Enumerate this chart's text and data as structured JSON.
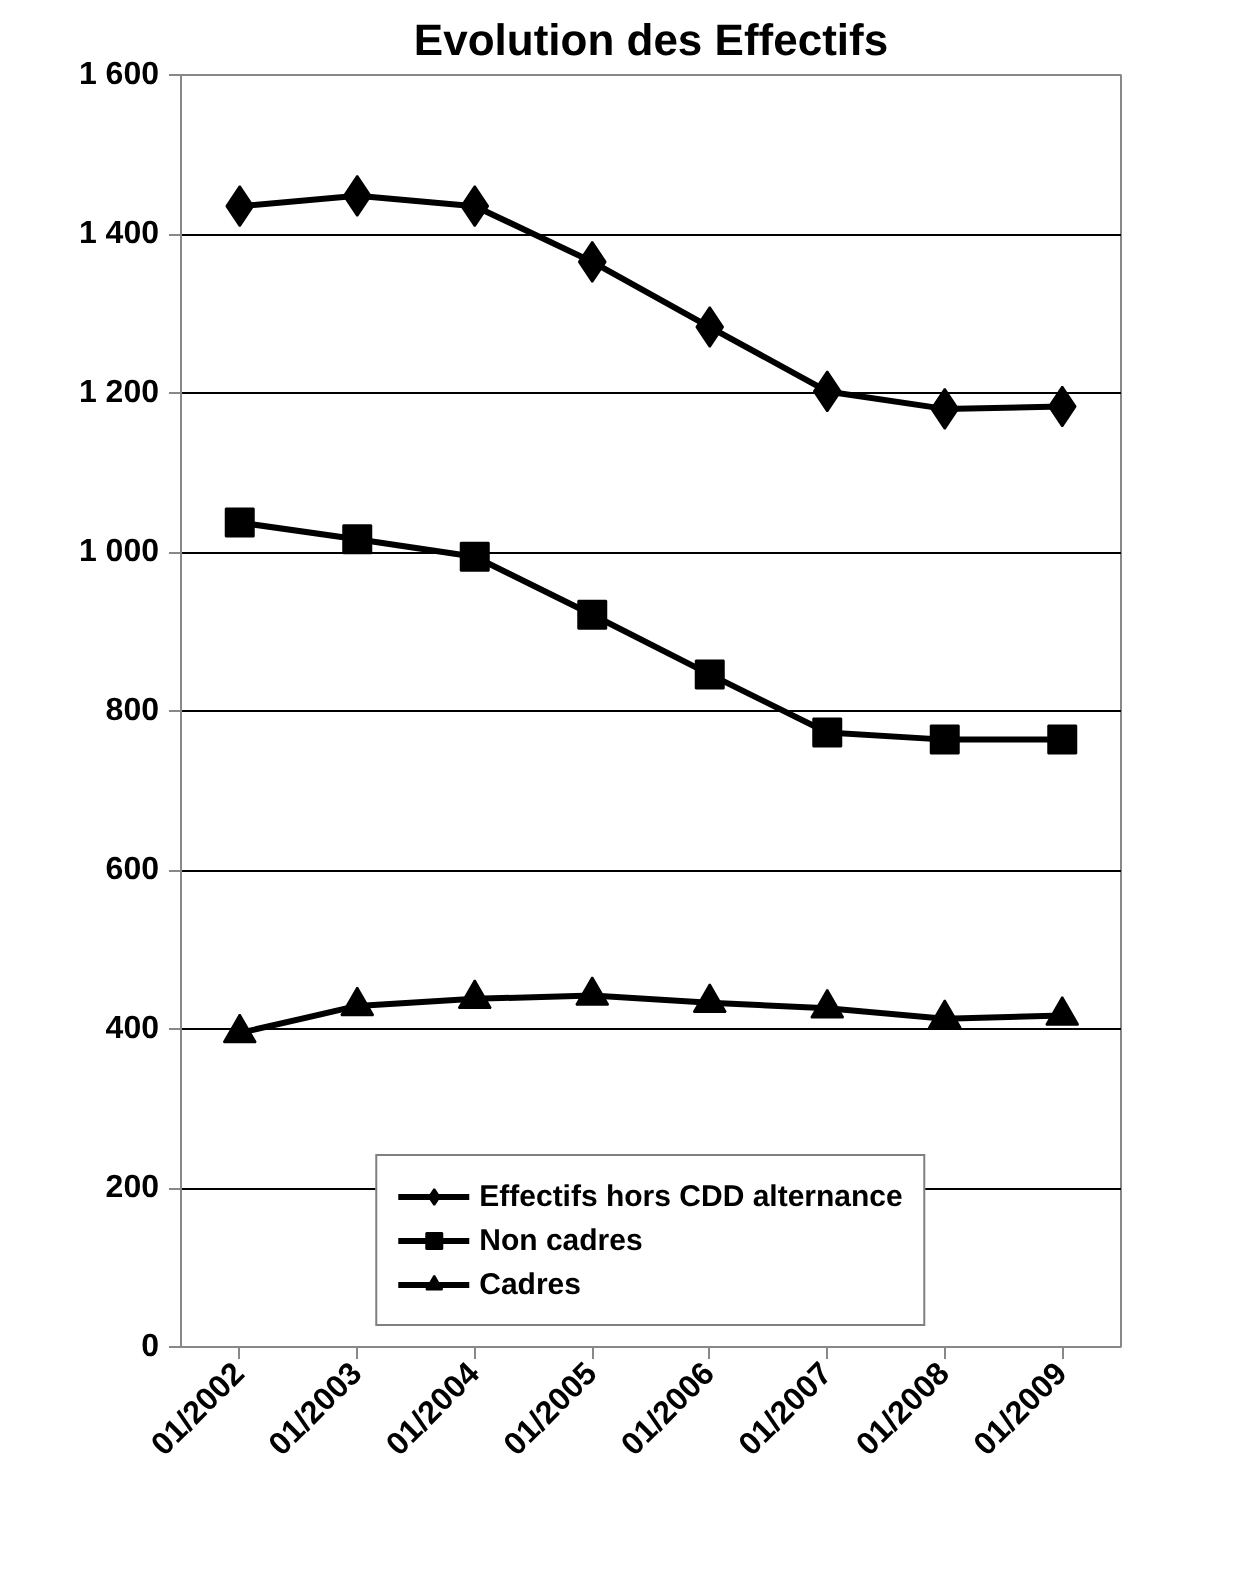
{
  "chart_data": {
    "type": "line",
    "title": "Evolution des Effectifs",
    "categories": [
      "01/2002",
      "01/2003",
      "01/2004",
      "01/2005",
      "01/2006",
      "01/2007",
      "01/2008",
      "01/2009"
    ],
    "series": [
      {
        "name": "Effectifs hors CDD alternance",
        "color": "#000000",
        "marker": "diamond",
        "values": [
          1435,
          1448,
          1435,
          1365,
          1283,
          1202,
          1180,
          1183
        ]
      },
      {
        "name": "Non cadres",
        "color": "#000000",
        "marker": "square",
        "values": [
          1037,
          1016,
          994,
          921,
          846,
          773,
          764,
          764
        ]
      },
      {
        "name": "Cadres",
        "color": "#000000",
        "marker": "triangle",
        "values": [
          395,
          429,
          438,
          442,
          433,
          426,
          413,
          417
        ]
      }
    ],
    "ylim": [
      0,
      1600
    ],
    "yticks": [
      {
        "value": 0,
        "label": "0"
      },
      {
        "value": 200,
        "label": "200"
      },
      {
        "value": 400,
        "label": "400"
      },
      {
        "value": 600,
        "label": "600"
      },
      {
        "value": 800,
        "label": "800"
      },
      {
        "value": 1000,
        "label": "1 000"
      },
      {
        "value": 1200,
        "label": "1 200"
      },
      {
        "value": 1400,
        "label": "1 400"
      },
      {
        "value": 1600,
        "label": "1 600"
      }
    ],
    "grid": "y",
    "legend": "bottom",
    "line_style": "solid"
  }
}
